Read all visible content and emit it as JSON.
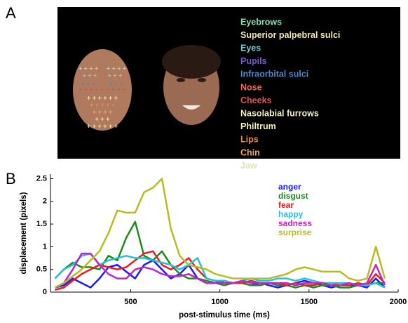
{
  "panel_labels": [
    "A",
    "B"
  ],
  "panel_a": {
    "regions": [
      {
        "name": "Eyebrows",
        "color": "#86e0b4"
      },
      {
        "name": "Superior palpebral sulci",
        "color": "#f4e8a8"
      },
      {
        "name": "Eyes",
        "color": "#6fcfd4"
      },
      {
        "name": "Pupils",
        "color": "#7b5ccc"
      },
      {
        "name": "Infraorbital sulci",
        "color": "#4c86cc"
      },
      {
        "name": "Nose",
        "color": "#f26a52"
      },
      {
        "name": "Cheeks",
        "color": "#e0524c"
      },
      {
        "name": "Nasolabial furrows",
        "color": "#eeeec4"
      },
      {
        "name": "Philtrum",
        "color": "#f4f0b4"
      },
      {
        "name": "Lips",
        "color": "#f08a42"
      },
      {
        "name": "Chin",
        "color": "#f2a462"
      },
      {
        "name": "Jaw",
        "color": "#d8e8b4"
      }
    ]
  },
  "chart_data": {
    "type": "line",
    "x_label": "post-stimulus time (ms)",
    "y_label": "displacement (pixels)",
    "xlim": [
      50,
      2000
    ],
    "ylim": [
      0,
      2.6
    ],
    "xticks": [
      500,
      1000,
      1500,
      2000
    ],
    "yticks": [
      0,
      0.5,
      1,
      1.5,
      2,
      2.5
    ],
    "grid": false,
    "legend_position": "upper right",
    "x": [
      75,
      125,
      175,
      225,
      275,
      325,
      375,
      425,
      475,
      525,
      575,
      625,
      675,
      725,
      775,
      825,
      875,
      925,
      975,
      1025,
      1075,
      1125,
      1175,
      1225,
      1275,
      1325,
      1375,
      1425,
      1475,
      1525,
      1575,
      1625,
      1675,
      1725,
      1775,
      1825,
      1875,
      1925
    ],
    "series": [
      {
        "name": "anger",
        "color": "#1a1aff",
        "values": [
          0.1,
          0.15,
          0.3,
          0.2,
          0.1,
          0.3,
          0.55,
          0.6,
          0.45,
          0.3,
          0.6,
          0.7,
          0.5,
          0.3,
          0.4,
          0.6,
          0.3,
          0.2,
          0.2,
          0.25,
          0.2,
          0.2,
          0.15,
          0.2,
          0.15,
          0.1,
          0.15,
          0.2,
          0.25,
          0.2,
          0.15,
          0.1,
          0.15,
          0.15,
          0.15,
          0.1,
          0.3,
          0.1
        ]
      },
      {
        "name": "disgust",
        "color": "#1a8c1a",
        "values": [
          0.3,
          0.5,
          0.65,
          0.55,
          0.55,
          0.5,
          0.8,
          0.7,
          1.2,
          1.55,
          0.8,
          0.7,
          0.9,
          0.6,
          0.4,
          0.3,
          0.3,
          0.25,
          0.2,
          0.15,
          0.2,
          0.2,
          0.15,
          0.15,
          0.2,
          0.15,
          0.15,
          0.1,
          0.15,
          0.1,
          0.15,
          0.15,
          0.1,
          0.1,
          0.15,
          0.15,
          0.2,
          0.2
        ]
      },
      {
        "name": "fear",
        "color": "#ee1c1c",
        "values": [
          0.05,
          0.1,
          0.25,
          0.4,
          0.5,
          0.6,
          0.55,
          0.5,
          0.55,
          0.7,
          0.85,
          0.9,
          0.6,
          0.5,
          0.6,
          0.75,
          0.5,
          0.3,
          0.25,
          0.2,
          0.2,
          0.2,
          0.25,
          0.2,
          0.2,
          0.2,
          0.15,
          0.2,
          0.15,
          0.15,
          0.2,
          0.2,
          0.15,
          0.15,
          0.2,
          0.15,
          0.4,
          0.2
        ]
      },
      {
        "name": "happy",
        "color": "#22c4d4",
        "values": [
          0.3,
          0.5,
          0.6,
          0.8,
          0.85,
          0.6,
          0.7,
          0.75,
          0.8,
          0.75,
          0.75,
          0.7,
          0.65,
          0.6,
          0.5,
          0.6,
          0.75,
          0.3,
          0.25,
          0.25,
          0.2,
          0.25,
          0.3,
          0.25,
          0.25,
          0.3,
          0.3,
          0.25,
          0.3,
          0.25,
          0.2,
          0.2,
          0.2,
          0.2,
          0.15,
          0.15,
          0.2,
          0.1
        ]
      },
      {
        "name": "sadness",
        "color": "#c024c8",
        "values": [
          0.1,
          0.2,
          0.5,
          0.85,
          0.85,
          0.6,
          0.4,
          0.3,
          0.3,
          0.5,
          0.55,
          0.5,
          0.4,
          0.35,
          0.35,
          0.4,
          0.3,
          0.2,
          0.2,
          0.2,
          0.2,
          0.25,
          0.2,
          0.2,
          0.2,
          0.2,
          0.2,
          0.15,
          0.2,
          0.2,
          0.2,
          0.15,
          0.15,
          0.2,
          0.15,
          0.2,
          0.6,
          0.15
        ]
      },
      {
        "name": "surprise",
        "color": "#b8bc1c",
        "values": [
          0.1,
          0.2,
          0.35,
          0.5,
          0.7,
          0.9,
          1.3,
          1.8,
          1.75,
          1.75,
          2.2,
          2.3,
          2.5,
          1.4,
          0.8,
          0.6,
          0.55,
          0.5,
          0.4,
          0.35,
          0.3,
          0.3,
          0.3,
          0.3,
          0.3,
          0.35,
          0.4,
          0.5,
          0.55,
          0.5,
          0.45,
          0.45,
          0.45,
          0.3,
          0.25,
          0.3,
          1.0,
          0.3
        ]
      }
    ]
  }
}
